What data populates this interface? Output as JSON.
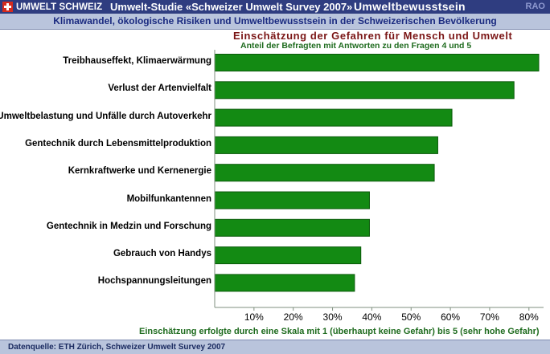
{
  "header": {
    "brand": "UMWELT SCHWEIZ",
    "study_title": "Umwelt-Studie «Schweizer Umwelt Survey 2007»",
    "section_title": "Umweltbewusstsein",
    "rao": "RAO",
    "subtitle": "Klimawandel, ökologische Risiken und Umweltbewusstsein  in der Schweizerischen Bevölkerung"
  },
  "colors": {
    "header_bg": "#2f3d80",
    "bar_fill": "#138a13",
    "bar_edge": "#0a5a0a",
    "title_red": "#7a1515",
    "note_green": "#1e6b1e"
  },
  "chart_data": {
    "type": "bar",
    "orientation": "horizontal",
    "title": "Einschätzung der Gefahren für Mensch und Umwelt",
    "subtitle": "Anteil der Befragten mit Antworten zu den Fragen 4 und 5",
    "categories": [
      "Treibhauseffekt, Klimaerwärmung",
      "Verlust der Artenvielfalt",
      "Umweltbelastung und Unfälle durch Autoverkehr",
      "Gentechnik durch Lebensmittelproduktion",
      "Kernkraftwerke und Kernenergie",
      "Mobilfunkantennen",
      "Gentechnik in Medzin und Forschung",
      "Gebrauch von Handys",
      "Hochspannungsleitungen"
    ],
    "values": [
      82.5,
      76.2,
      60.4,
      56.8,
      55.9,
      39.4,
      39.4,
      37.2,
      35.6
    ],
    "x_ticks": [
      "10%",
      "20%",
      "30%",
      "40%",
      "50%",
      "60%",
      "70%",
      "80%"
    ],
    "xlim": [
      0,
      85
    ],
    "grid": false,
    "legend": "none",
    "xlabel": "Einschätzung erfolgte durch eine Skala mit 1 (überhaupt keine Gefahr) bis 5 (sehr hohe Gefahr)"
  },
  "footer": {
    "source": "Datenquelle: ETH Zürich, Schweizer Umwelt Survey 2007"
  }
}
